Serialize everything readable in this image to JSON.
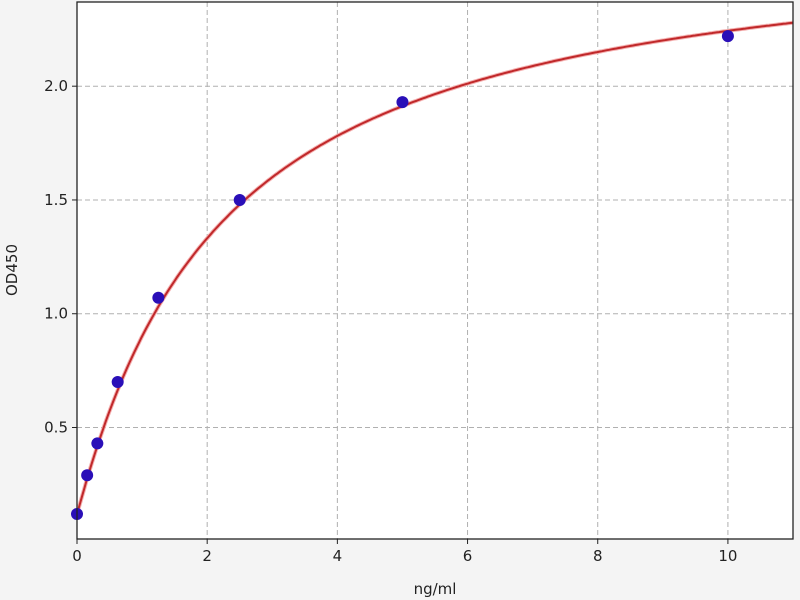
{
  "chart_data": {
    "type": "scatter",
    "title": "",
    "xlabel": "ng/ml",
    "ylabel": "OD450",
    "xlim": [
      0,
      11
    ],
    "ylim": [
      0.01,
      2.37
    ],
    "xticks": [
      0,
      2,
      4,
      6,
      8,
      10
    ],
    "yticks": [
      0.5,
      1.0,
      1.5,
      2.0
    ],
    "xtick_labels": [
      "0",
      "2",
      "4",
      "6",
      "8",
      "10"
    ],
    "ytick_labels": [
      "0.5",
      "1.0",
      "1.5",
      "2.0"
    ],
    "grid": true,
    "series": [
      {
        "kind": "points",
        "x": [
          0,
          0.156,
          0.3125,
          0.625,
          1.25,
          2.5,
          5,
          10
        ],
        "y": [
          0.12,
          0.29,
          0.43,
          0.7,
          1.07,
          1.5,
          1.93,
          2.22
        ],
        "color": "#2a0fb8"
      },
      {
        "kind": "fitted-curve",
        "color": "#c0282a"
      }
    ]
  }
}
